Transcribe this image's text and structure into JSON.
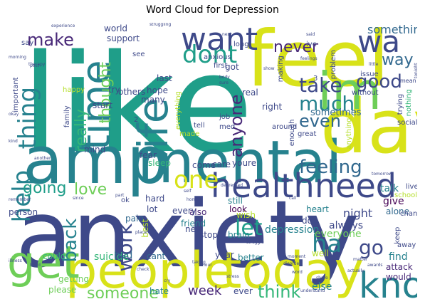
{
  "title": "Word Cloud for Depression",
  "palette": [
    "#440154",
    "#482878",
    "#3e4989",
    "#31688e",
    "#26828e",
    "#1f9e89",
    "#35b779",
    "#6ece58",
    "#b5de2b",
    "#d8e219",
    "#fde725"
  ],
  "words": [
    {
      "text": "like",
      "color": "#1f9e89"
    },
    {
      "text": "anxiety",
      "color": "#3e4989"
    },
    {
      "text": "feel",
      "color": "#d8e219"
    },
    {
      "text": "amp",
      "color": "#26828e"
    },
    {
      "text": "mental",
      "color": "#26828e"
    },
    {
      "text": "day",
      "color": "#d8e219"
    },
    {
      "text": "im",
      "color": "#6ece58"
    },
    {
      "text": "people",
      "color": "#d8e219"
    },
    {
      "text": "today",
      "color": "#d8e219"
    },
    {
      "text": "health",
      "color": "#3e4989"
    },
    {
      "text": "need",
      "color": "#3e4989"
    },
    {
      "text": "life",
      "color": "#26828e"
    },
    {
      "text": "time",
      "color": "#26828e"
    },
    {
      "text": "want",
      "color": "#3e4989"
    },
    {
      "text": "get",
      "color": "#6ece58"
    },
    {
      "text": "know",
      "color": "#26828e"
    },
    {
      "text": "dont",
      "color": "#1f9e89"
    },
    {
      "text": "wa",
      "color": "#3e4989"
    },
    {
      "text": "one",
      "color": "#d8e219"
    },
    {
      "text": "thing",
      "color": "#26828e"
    },
    {
      "text": "help",
      "color": "#26828e"
    },
    {
      "text": "feeling",
      "color": "#31688e"
    },
    {
      "text": "much",
      "color": "#26828e"
    },
    {
      "text": "take",
      "color": "#3e4989"
    },
    {
      "text": "good",
      "color": "#3e4989"
    },
    {
      "text": "ha",
      "color": "#26828e"
    },
    {
      "text": "go",
      "color": "#3e4989"
    },
    {
      "text": "let",
      "color": "#1f9e89"
    },
    {
      "text": "work",
      "color": "#3e4989"
    },
    {
      "text": "back",
      "color": "#26828e"
    },
    {
      "text": "going",
      "color": "#1f9e89"
    },
    {
      "text": "love",
      "color": "#6ece58"
    },
    {
      "text": "think",
      "color": "#35b779"
    },
    {
      "text": "someone",
      "color": "#6ece58"
    },
    {
      "text": "week",
      "color": "#482878"
    },
    {
      "text": "even",
      "color": "#31688e"
    },
    {
      "text": "anyone",
      "color": "#482878"
    },
    {
      "text": "really",
      "color": "#35b779"
    },
    {
      "text": "make",
      "color": "#482878"
    },
    {
      "text": "never",
      "color": "#482878"
    },
    {
      "text": "way",
      "color": "#31688e"
    },
    {
      "text": "thought",
      "color": "#6ece58"
    },
    {
      "text": "something",
      "color": "#31688e"
    },
    {
      "text": "depression",
      "color": "#26828e"
    },
    {
      "text": "sometimes",
      "color": "#31688e"
    },
    {
      "text": "always",
      "color": "#3e4989"
    },
    {
      "text": "everyone",
      "color": "#6ece58"
    },
    {
      "text": "night",
      "color": "#3e4989"
    },
    {
      "text": "talk",
      "color": "#26828e"
    },
    {
      "text": "give",
      "color": "#440154"
    },
    {
      "text": "alone",
      "color": "#31688e"
    },
    {
      "text": "find",
      "color": "#26828e"
    },
    {
      "text": "attack",
      "color": "#482878"
    },
    {
      "text": "would",
      "color": "#482878"
    },
    {
      "text": "else",
      "color": "#26828e"
    },
    {
      "text": "please",
      "color": "#6ece58"
    },
    {
      "text": "getting",
      "color": "#6ece58"
    },
    {
      "text": "could",
      "color": "#35b779"
    },
    {
      "text": "suicide",
      "color": "#35b779"
    },
    {
      "text": "bad",
      "color": "#31688e"
    },
    {
      "text": "cant",
      "color": "#31688e"
    },
    {
      "text": "hate",
      "color": "#26828e"
    },
    {
      "text": "ever",
      "color": "#3e4989"
    },
    {
      "text": "better",
      "color": "#26828e"
    },
    {
      "text": "year",
      "color": "#3e4989"
    },
    {
      "text": "well",
      "color": "#b5de2b"
    },
    {
      "text": "doe",
      "color": "#3e4989"
    },
    {
      "text": "wish",
      "color": "#b5de2b"
    },
    {
      "text": "heart",
      "color": "#26828e"
    },
    {
      "text": "brain",
      "color": "#26828e"
    },
    {
      "text": "stop",
      "color": "#3e4989"
    },
    {
      "text": "new",
      "color": "#3e4989"
    },
    {
      "text": "friend",
      "color": "#26828e"
    },
    {
      "text": "also",
      "color": "#482878"
    },
    {
      "text": "look",
      "color": "#440154"
    },
    {
      "text": "still",
      "color": "#26828e"
    },
    {
      "text": "pain",
      "color": "#31688e"
    },
    {
      "text": "best",
      "color": "#b5de2b"
    },
    {
      "text": "lot",
      "color": "#3e4989"
    },
    {
      "text": "every",
      "color": "#3e4989"
    },
    {
      "text": "hard",
      "color": "#3e4989"
    },
    {
      "text": "ok",
      "color": "#3e4989"
    },
    {
      "text": "person",
      "color": "#3e4989"
    },
    {
      "text": "care",
      "color": "#3e4989"
    },
    {
      "text": "youre",
      "color": "#3e4989"
    },
    {
      "text": "come",
      "color": "#3e4989"
    },
    {
      "text": "sleep",
      "color": "#35b779"
    },
    {
      "text": "fear",
      "color": "#3e4989"
    },
    {
      "text": "mind",
      "color": "#3e4989"
    },
    {
      "text": "start",
      "color": "#3e4989"
    },
    {
      "text": "try",
      "color": "#3e4989"
    },
    {
      "text": "many",
      "color": "#3e4989"
    },
    {
      "text": "others",
      "color": "#3e4989"
    },
    {
      "text": "last",
      "color": "#3e4989"
    },
    {
      "text": "hope",
      "color": "#3e4989"
    },
    {
      "text": "see",
      "color": "#3e4989"
    },
    {
      "text": "support",
      "color": "#3e4989"
    },
    {
      "text": "world",
      "color": "#3e4989"
    },
    {
      "text": "say",
      "color": "#3e4989"
    },
    {
      "text": "important",
      "color": "#3e4989"
    },
    {
      "text": "happy",
      "color": "#b5de2b"
    },
    {
      "text": "family",
      "color": "#3e4989"
    },
    {
      "text": "job",
      "color": "#3e4989"
    },
    {
      "text": "med",
      "color": "#3e4989"
    },
    {
      "text": "tell",
      "color": "#3e4989"
    },
    {
      "text": "made",
      "color": "#b5de2b"
    },
    {
      "text": "everything",
      "color": "#b5de2b"
    },
    {
      "text": "real",
      "color": "#3e4989"
    },
    {
      "text": "got",
      "color": "#3e4989"
    },
    {
      "text": "first",
      "color": "#3e4989"
    },
    {
      "text": "anxious",
      "color": "#3e4989"
    },
    {
      "text": "long",
      "color": "#3e4989"
    },
    {
      "text": "right",
      "color": "#3e4989"
    },
    {
      "text": "around",
      "color": "#3e4989"
    },
    {
      "text": "enough",
      "color": "#3e4989"
    },
    {
      "text": "great",
      "color": "#3e4989"
    },
    {
      "text": "anything",
      "color": "#b5de2b"
    },
    {
      "text": "social",
      "color": "#3e4989"
    },
    {
      "text": "live",
      "color": "#3e4989"
    },
    {
      "text": "school",
      "color": "#b5de2b"
    },
    {
      "text": "change",
      "color": "#3e4989"
    },
    {
      "text": "keep",
      "color": "#3e4989"
    },
    {
      "text": "away",
      "color": "#3e4989"
    },
    {
      "text": "problem",
      "color": "#3e4989"
    },
    {
      "text": "issue",
      "color": "#3e4989"
    },
    {
      "text": "without",
      "color": "#3e4989"
    },
    {
      "text": "trying",
      "color": "#3e4989"
    },
    {
      "text": "nothing",
      "color": "#35b779"
    },
    {
      "text": "making",
      "color": "#3e4989"
    },
    {
      "text": "ive",
      "color": "#3e4989"
    },
    {
      "text": "mean",
      "color": "#3e4989"
    },
    {
      "text": "said",
      "color": "#3e4989"
    },
    {
      "text": "next",
      "color": "#3e4989"
    },
    {
      "text": "feelings",
      "color": "#3e4989"
    },
    {
      "text": "experience",
      "color": "#3e4989"
    },
    {
      "text": "struggling",
      "color": "#3e4989"
    },
    {
      "text": "morning",
      "color": "#3e4989"
    },
    {
      "text": "therapy",
      "color": "#3e4989"
    },
    {
      "text": "tonight",
      "color": "#3e4989"
    },
    {
      "text": "body",
      "color": "#3e4989"
    },
    {
      "text": "sure",
      "color": "#3e4989"
    },
    {
      "text": "hour",
      "color": "#3e4989"
    },
    {
      "text": "disorder",
      "color": "#3e4989"
    },
    {
      "text": "word",
      "color": "#3e4989"
    },
    {
      "text": "remember",
      "color": "#3e4989"
    },
    {
      "text": "kind",
      "color": "#3e4989"
    },
    {
      "text": "another",
      "color": "#3e4989"
    },
    {
      "text": "cry",
      "color": "#3e4989"
    },
    {
      "text": "stress",
      "color": "#3e4989"
    },
    {
      "text": "share",
      "color": "#3e4989"
    },
    {
      "text": "understand",
      "color": "#3e4989"
    },
    {
      "text": "illness",
      "color": "#3e4989"
    },
    {
      "text": "check",
      "color": "#3e4989"
    },
    {
      "text": "taking",
      "color": "#3e4989"
    },
    {
      "text": "moment",
      "color": "#3e4989"
    },
    {
      "text": "matter",
      "color": "#3e4989"
    },
    {
      "text": "actually",
      "color": "#3e4989"
    },
    {
      "text": "awards",
      "color": "#3e4989"
    },
    {
      "text": "struggle",
      "color": "#3e4989"
    },
    {
      "text": "call",
      "color": "#3e4989"
    },
    {
      "text": "home",
      "color": "#3e4989"
    },
    {
      "text": "part",
      "color": "#3e4989"
    },
    {
      "text": "place",
      "color": "#3e4989"
    },
    {
      "text": "head",
      "color": "#3e4989"
    },
    {
      "text": "depressed",
      "color": "#3e4989"
    },
    {
      "text": "tomorrow",
      "color": "#3e4989"
    },
    {
      "text": "little",
      "color": "#3e4989"
    },
    {
      "text": "show",
      "color": "#3e4989"
    },
    {
      "text": "self",
      "color": "#3e4989"
    },
    {
      "text": "okay",
      "color": "#3e4989"
    },
    {
      "text": "since",
      "color": "#3e4989"
    },
    {
      "text": "post",
      "color": "#3e4989"
    },
    {
      "text": "2",
      "color": "#3e4989"
    },
    {
      "text": "3",
      "color": "#3e4989"
    }
  ]
}
